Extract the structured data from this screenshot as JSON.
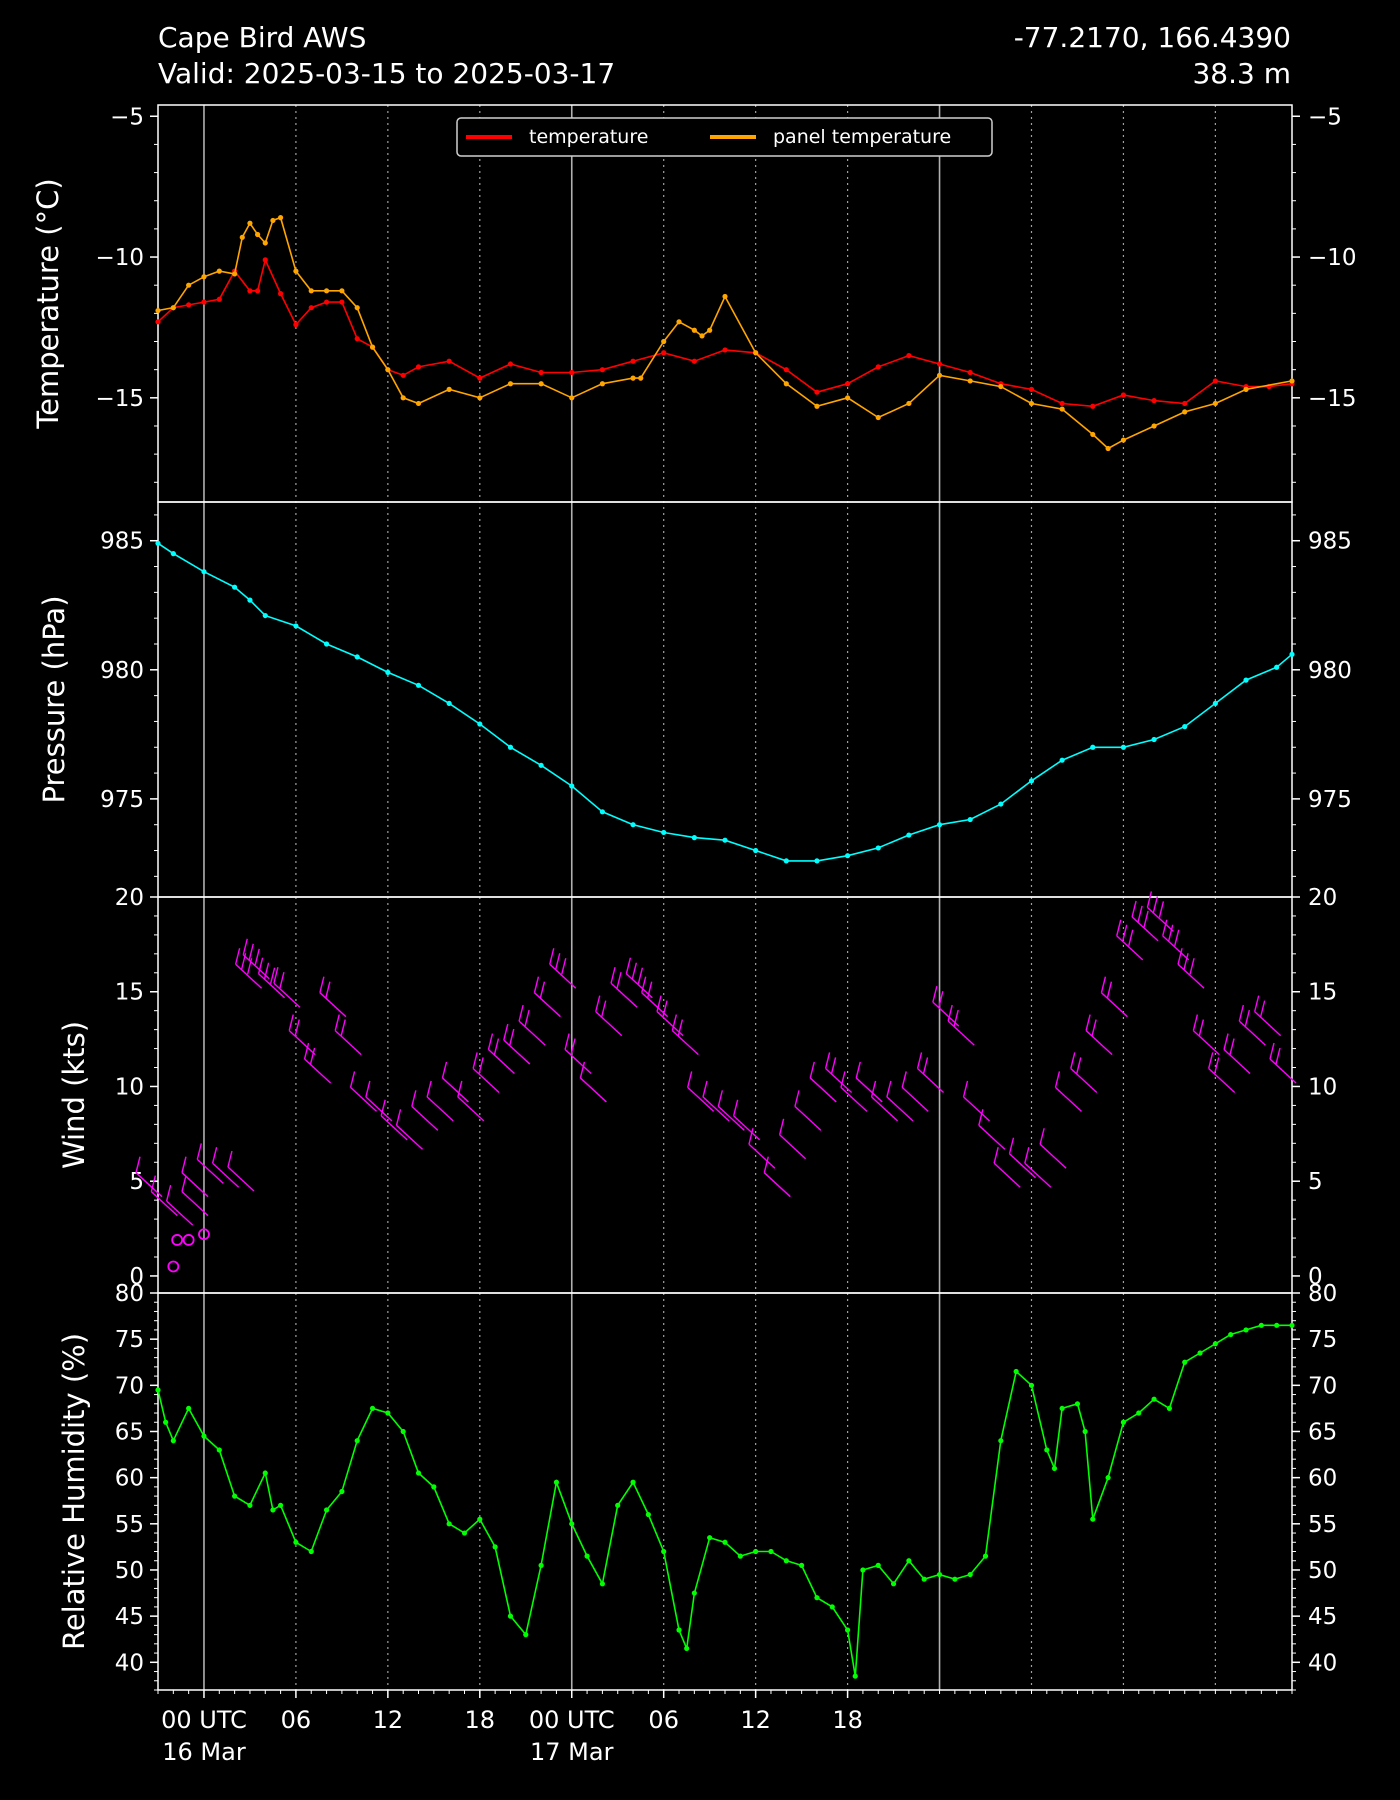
{
  "header": {
    "station": "Cape Bird AWS",
    "valid": "Valid: 2025-03-15 to 2025-03-17",
    "coords": "-77.2170, 166.4390",
    "elevation": "38.3 m"
  },
  "colors": {
    "background": "#000000",
    "foreground": "#ffffff",
    "temperature": "#ff0000",
    "panel_temperature": "#ffa500",
    "pressure": "#00ffff",
    "wind": "#ff00ff",
    "humidity": "#00ff00"
  },
  "chart_data": [
    {
      "type": "line",
      "ylabel": "Temperature (°C)",
      "ylim": [
        -18.7,
        -4.6
      ],
      "yticks": [
        -15,
        -10,
        -5
      ],
      "legend": "top-center",
      "grid": "vertical dotted",
      "x_unit": "hours from 2025-03-15 00 UTC",
      "series": [
        {
          "name": "temperature",
          "color": "#ff0000",
          "x": [
            21,
            22,
            23,
            24,
            25,
            26,
            27,
            27.5,
            28,
            29,
            30,
            31,
            32,
            33,
            34,
            35,
            36,
            37,
            38,
            40,
            42,
            44,
            46,
            48,
            50,
            52,
            54,
            56,
            58,
            60,
            62,
            64,
            66,
            68,
            70,
            72,
            74,
            76,
            78,
            80,
            82,
            84,
            86,
            88,
            90,
            92,
            93.5,
            95
          ],
          "values": [
            -12.3,
            -11.8,
            -11.7,
            -11.6,
            -11.5,
            -10.5,
            -11.2,
            -11.2,
            -10.1,
            -11.3,
            -12.4,
            -11.8,
            -11.6,
            -11.6,
            -12.9,
            -13.2,
            -14.0,
            -14.2,
            -13.9,
            -13.7,
            -14.3,
            -13.8,
            -14.1,
            -14.1,
            -14.0,
            -13.7,
            -13.4,
            -13.7,
            -13.3,
            -13.4,
            -14.0,
            -14.8,
            -14.5,
            -13.9,
            -13.5,
            -13.8,
            -14.1,
            -14.5,
            -14.7,
            -15.2,
            -15.3,
            -14.9,
            -15.1,
            -15.2,
            -14.4,
            -14.6,
            -14.6,
            -14.5
          ]
        },
        {
          "name": "panel temperature",
          "color": "#ffa500",
          "x": [
            21,
            22,
            23,
            24,
            25,
            26,
            26.5,
            27,
            27.5,
            28,
            28.5,
            29,
            30,
            31,
            32,
            33,
            34,
            35,
            36,
            37,
            38,
            40,
            42,
            44,
            46,
            48,
            50,
            52,
            52.5,
            54,
            55,
            56,
            56.5,
            57,
            58,
            60,
            62,
            64,
            66,
            68,
            70,
            72,
            74,
            76,
            78,
            80,
            82,
            83,
            84,
            86,
            88,
            90,
            92,
            95
          ],
          "values": [
            -11.9,
            -11.8,
            -11.0,
            -10.7,
            -10.5,
            -10.6,
            -9.3,
            -8.8,
            -9.2,
            -9.5,
            -8.7,
            -8.6,
            -10.5,
            -11.2,
            -11.2,
            -11.2,
            -11.8,
            -13.2,
            -14.0,
            -15.0,
            -15.2,
            -14.7,
            -15.0,
            -14.5,
            -14.5,
            -15.0,
            -14.5,
            -14.3,
            -14.3,
            -13.0,
            -12.3,
            -12.6,
            -12.8,
            -12.6,
            -11.4,
            -13.4,
            -14.5,
            -15.3,
            -15.0,
            -15.7,
            -15.2,
            -14.2,
            -14.4,
            -14.6,
            -15.2,
            -15.4,
            -16.3,
            -16.8,
            -16.5,
            -16.0,
            -15.5,
            -15.2,
            -14.7,
            -14.4
          ]
        }
      ]
    },
    {
      "type": "line",
      "ylabel": "Pressure (hPa)",
      "ylim": [
        971.2,
        986.5
      ],
      "yticks": [
        975,
        980,
        985
      ],
      "series": [
        {
          "name": "",
          "color": "#00ffff",
          "x": [
            21,
            22,
            24,
            26,
            27,
            28,
            30,
            32,
            34,
            36,
            38,
            40,
            42,
            44,
            46,
            48,
            50,
            52,
            54,
            56,
            58,
            60,
            62,
            64,
            66,
            68,
            70,
            72,
            74,
            76,
            78,
            80,
            82,
            84,
            86,
            88,
            90,
            92,
            94,
            95
          ],
          "values": [
            984.9,
            984.5,
            983.8,
            983.2,
            982.7,
            982.1,
            981.7,
            981.0,
            980.5,
            979.9,
            979.4,
            978.7,
            977.9,
            977.0,
            976.3,
            975.5,
            974.5,
            974.0,
            973.7,
            973.5,
            973.4,
            973.0,
            972.6,
            972.6,
            972.8,
            973.1,
            973.6,
            974.0,
            974.2,
            974.8,
            975.7,
            976.5,
            977.0,
            977.0,
            977.3,
            977.8,
            978.7,
            979.6,
            980.1,
            980.6
          ]
        }
      ]
    },
    {
      "type": "scatter",
      "ylabel": "Wind (kts)",
      "ylim": [
        -0.9,
        20
      ],
      "yticks": [
        0,
        5,
        10,
        15,
        20
      ],
      "series": [
        {
          "name": "",
          "color": "#ff00ff",
          "x": [
            21.0,
            22.0,
            23.0,
            24.0,
            24.0,
            25.0,
            26.0,
            27.0,
            27.5,
            28.0,
            29.0,
            30.0,
            31.0,
            32.0,
            33.0,
            34.0,
            35.0,
            36.0,
            37.0,
            38.0,
            39.0,
            40.0,
            41.0,
            42.0,
            43.0,
            44.0,
            45.0,
            46.0,
            47.0,
            48.0,
            49.0,
            50.0,
            51.0,
            52.0,
            53.0,
            54.0,
            55.0,
            56.0,
            57.0,
            58.0,
            59.0,
            60.0,
            61.0,
            62.0,
            63.0,
            64.0,
            65.0,
            66.0,
            67.0,
            68.0,
            69.0,
            70.0,
            71.0,
            72.0,
            73.0,
            74.0,
            75.0,
            76.0,
            77.0,
            78.0,
            79.0,
            80.0,
            81.0,
            82.0,
            83.0,
            84.0,
            85.0,
            86.0,
            87.0,
            88.0,
            89.0,
            90.0,
            91.0,
            92.0,
            93.0,
            94.0,
            95.0
          ],
          "values": [
            4.5,
            3.5,
            3.0,
            3.5,
            4.5,
            5.2,
            5.0,
            4.8,
            15.5,
            16.0,
            15.0,
            14.5,
            12.0,
            10.5,
            14.0,
            12.0,
            9.0,
            8.5,
            7.5,
            7.0,
            8.0,
            8.5,
            9.5,
            8.5,
            10.0,
            11.0,
            11.5,
            12.5,
            14.0,
            15.5,
            11.0,
            9.5,
            13.0,
            14.5,
            15.0,
            14.0,
            13.0,
            12.0,
            9.0,
            8.5,
            8.0,
            7.5,
            6.0,
            4.5,
            6.5,
            8.0,
            9.5,
            10.0,
            9.0,
            9.5,
            8.5,
            8.5,
            9.0,
            10.0,
            13.5,
            12.5,
            8.5,
            7.0,
            5.0,
            5.5,
            5.0,
            6.0,
            9.0,
            10.0,
            12.0,
            14.0,
            17.0,
            18.0,
            18.5,
            17.0,
            15.5,
            12.0,
            10.0,
            11.0,
            12.5,
            13.0,
            10.5
          ]
        },
        {
          "name": "calm",
          "color": "#ff00ff",
          "x": [
            22.0,
            22.25,
            23.0,
            24.0
          ],
          "values": [
            0.5,
            1.9,
            1.9,
            2.2
          ]
        }
      ]
    },
    {
      "type": "line",
      "ylabel": "Relative Humidity (%)",
      "ylim": [
        37,
        80
      ],
      "yticks": [
        40,
        45,
        50,
        55,
        60,
        65,
        70,
        75,
        80
      ],
      "xticks": [
        "00 UTC\n16 Mar",
        "06",
        "12",
        "18",
        "00 UTC\n17 Mar",
        "06",
        "12",
        "18"
      ],
      "series": [
        {
          "name": "",
          "color": "#00ff00",
          "x": [
            21,
            21.5,
            22,
            23,
            24,
            25,
            26,
            27,
            28,
            28.5,
            29,
            30,
            31,
            32,
            33,
            34,
            35,
            36,
            37,
            38,
            39,
            40,
            41,
            42,
            43,
            44,
            45,
            46,
            47,
            48,
            49,
            50,
            51,
            52,
            53,
            54,
            55,
            55.5,
            56,
            57,
            58,
            59,
            60,
            61,
            62,
            63,
            64,
            65,
            66,
            66.5,
            67,
            68,
            69,
            70,
            71,
            72,
            73,
            74,
            75,
            76,
            77,
            78,
            79,
            79.5,
            80,
            81,
            81.5,
            82,
            83,
            84,
            85,
            86,
            87,
            88,
            89,
            90,
            91,
            92,
            93,
            94,
            95
          ],
          "values": [
            69.5,
            66.0,
            64.0,
            67.5,
            64.5,
            63.0,
            58.0,
            57.0,
            60.5,
            56.5,
            57.0,
            53.0,
            52.0,
            56.5,
            58.5,
            64.0,
            67.5,
            67.0,
            65.0,
            60.5,
            59.0,
            55.0,
            54.0,
            55.5,
            52.5,
            45.0,
            43.0,
            50.5,
            59.5,
            55.0,
            51.5,
            48.5,
            57.0,
            59.5,
            56.0,
            52.0,
            43.5,
            41.5,
            47.5,
            53.5,
            53.0,
            51.5,
            52.0,
            52.0,
            51.0,
            50.5,
            47.0,
            46.0,
            43.5,
            38.5,
            50.0,
            50.5,
            48.5,
            51.0,
            49.0,
            49.5,
            49.0,
            49.5,
            51.5,
            64.0,
            71.5,
            70.0,
            63.0,
            61.0,
            67.5,
            68.0,
            65.0,
            55.5,
            60.0,
            66.0,
            67.0,
            68.5,
            67.5,
            72.5,
            73.5,
            74.5,
            75.5,
            76.0,
            76.5,
            76.5,
            76.5
          ]
        }
      ]
    }
  ]
}
